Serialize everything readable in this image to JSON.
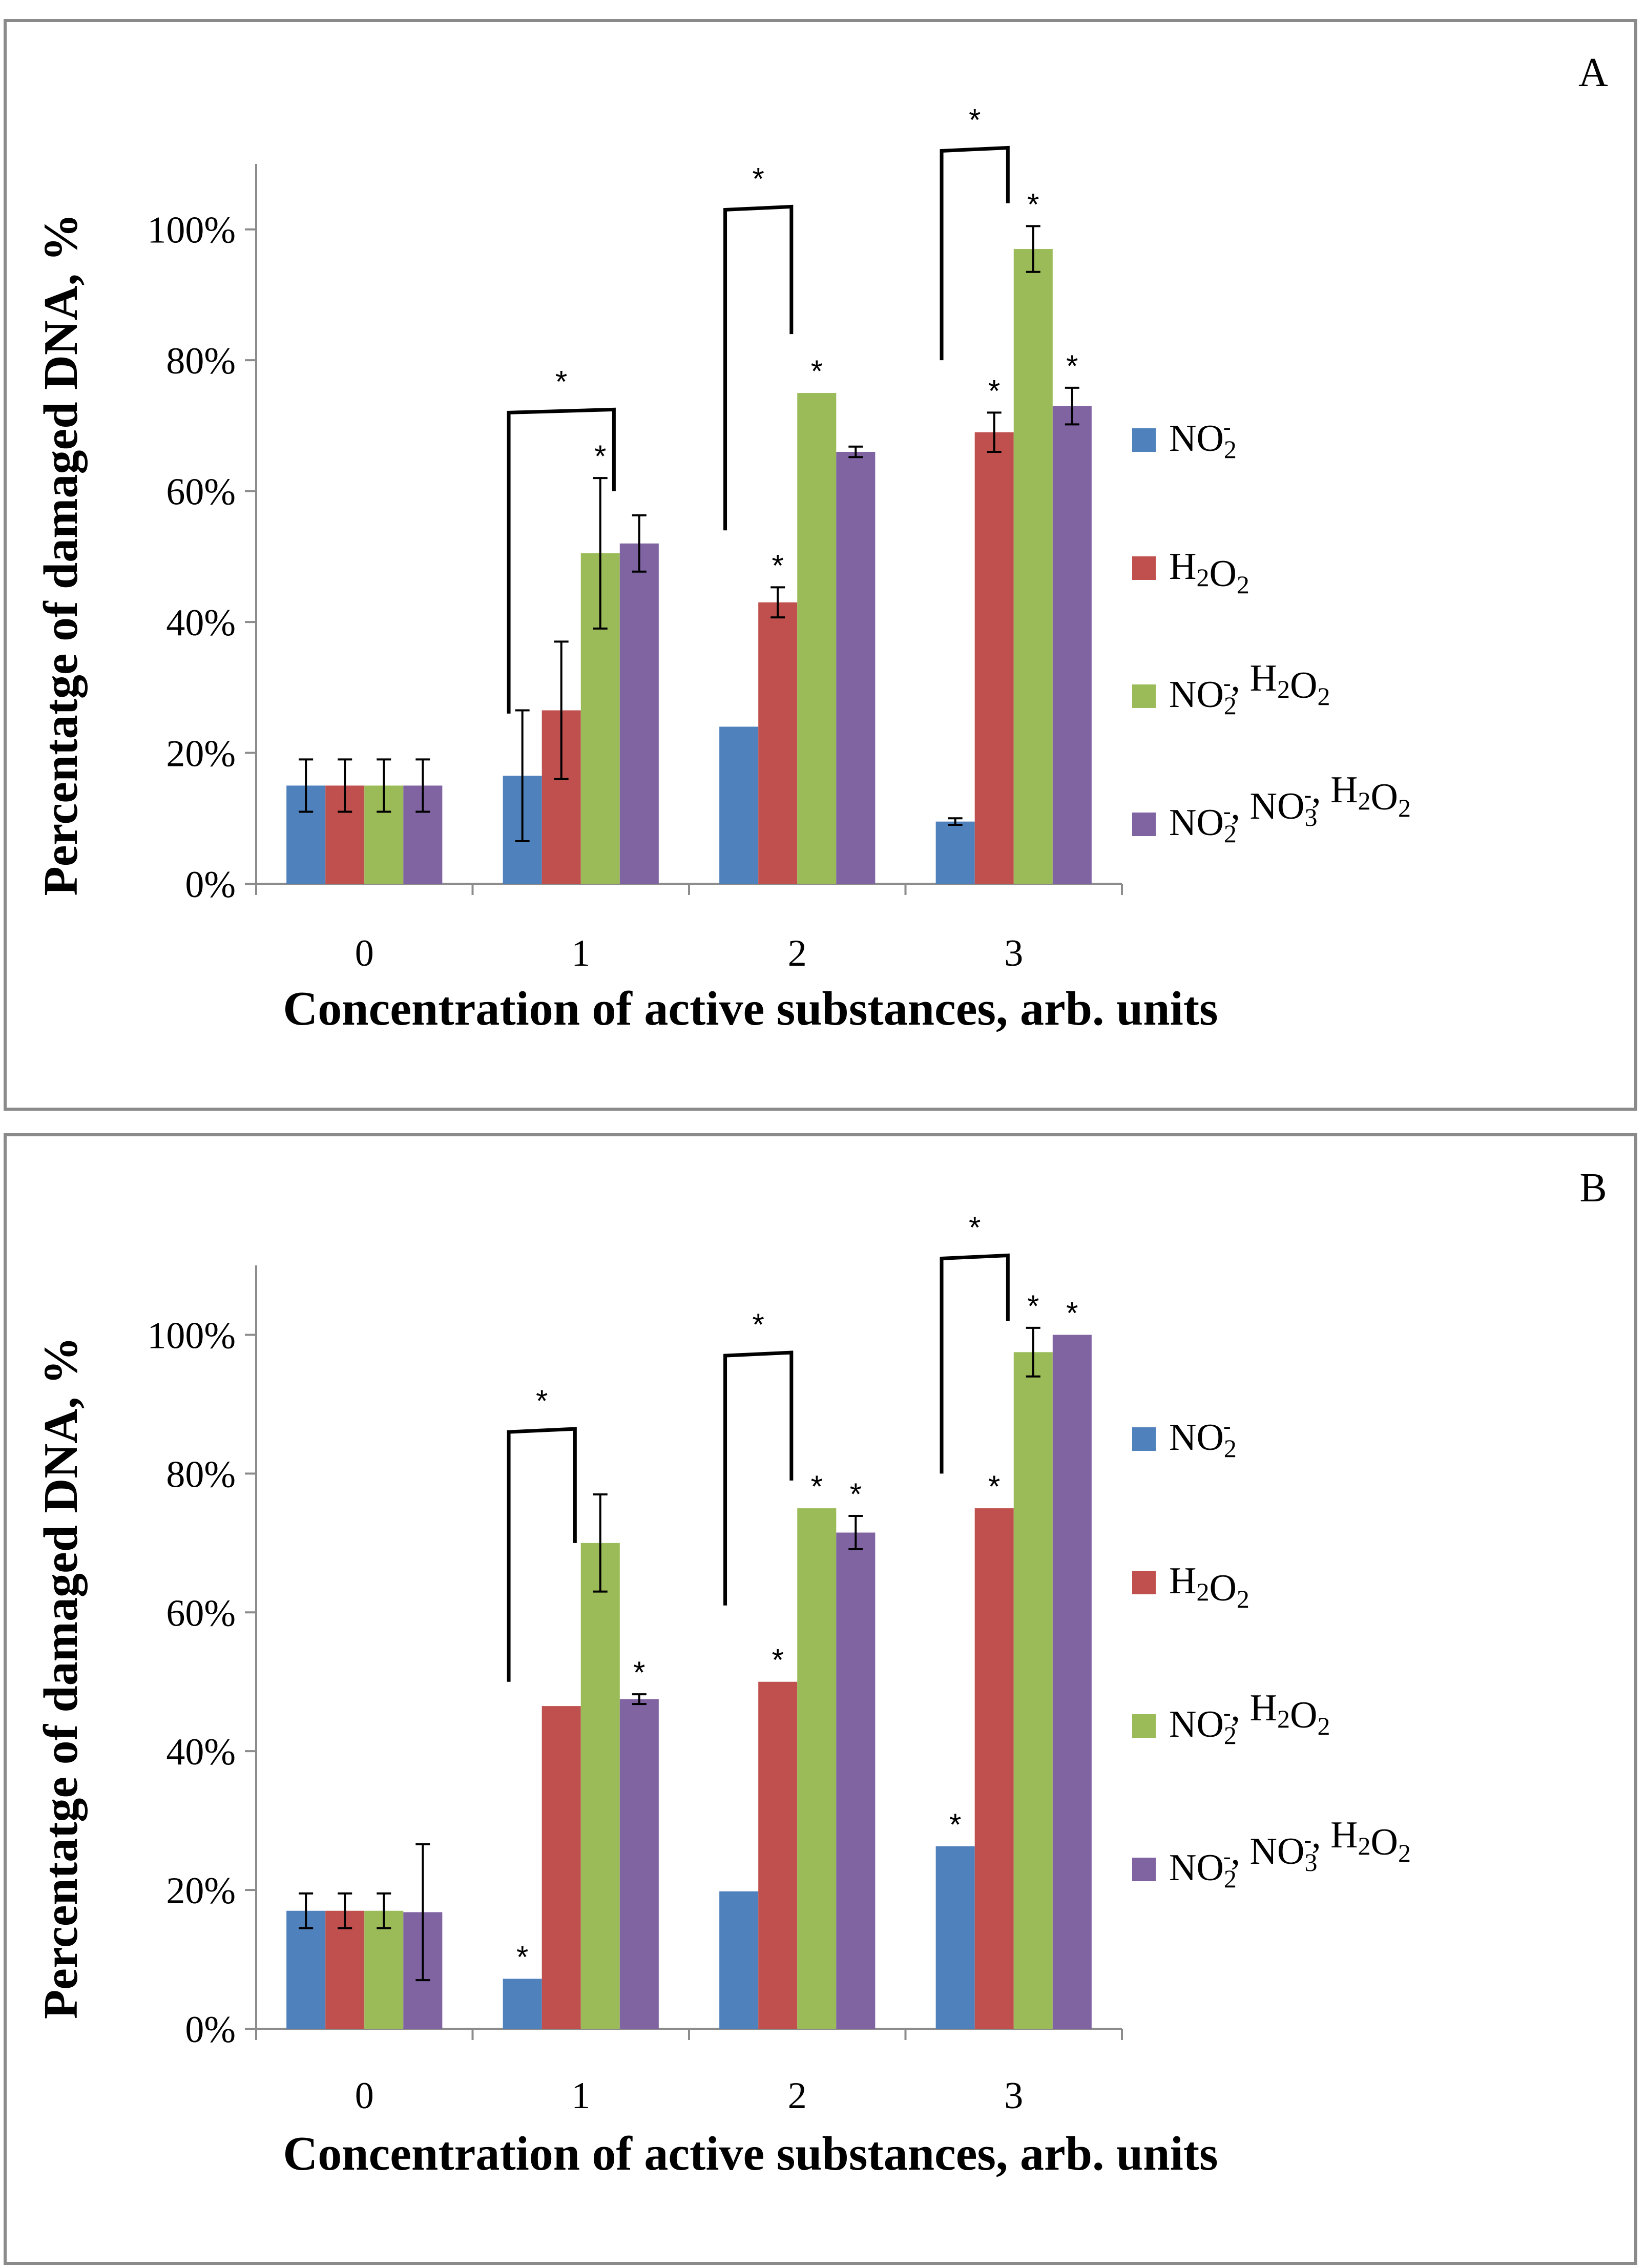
{
  "colors": {
    "series": [
      "#4f81bd",
      "#c0504d",
      "#9bbb59",
      "#8064a2"
    ]
  },
  "chart_data": [
    {
      "type": "bar",
      "panel_label": "A",
      "xlabel": "Concentration of active substances, arb. units",
      "ylabel": "Percentatge of damaged DNA, %",
      "categories": [
        "0",
        "1",
        "2",
        "3"
      ],
      "ylim": [
        0,
        110
      ],
      "yticks": [
        0,
        20,
        40,
        60,
        80,
        100
      ],
      "ytick_labels": [
        "0%",
        "20%",
        "40%",
        "60%",
        "80%",
        "100%"
      ],
      "legend_position": "right",
      "series": [
        {
          "name": "NO2-",
          "legend": {
            "base": "NO",
            "sub": "2",
            "sup": "-"
          },
          "values": [
            15,
            16.5,
            24,
            9.5
          ],
          "errors": [
            4,
            10,
            0,
            0.5
          ]
        },
        {
          "name": "H2O2",
          "legend": {
            "text": "H2O2"
          },
          "values": [
            15,
            26.5,
            43,
            69
          ],
          "errors": [
            4,
            10.5,
            2.3,
            3
          ]
        },
        {
          "name": "NO2-, H2O2",
          "legend": {
            "text": "NO2-, H2O2"
          },
          "values": [
            15,
            50.5,
            75,
            97
          ],
          "errors": [
            4,
            11.5,
            0,
            3.5
          ]
        },
        {
          "name": "NO2-, NO3-, H2O2",
          "legend": {
            "text": "NO2-, NO3-, H2O2"
          },
          "values": [
            15,
            52,
            66,
            73
          ],
          "errors": [
            4,
            4.3,
            0.8,
            2.8
          ]
        }
      ],
      "significance_markers": [
        {
          "category": 1,
          "series": 2
        },
        {
          "category": 2,
          "series": 1
        },
        {
          "category": 2,
          "series": 2
        },
        {
          "category": 3,
          "series": 1
        },
        {
          "category": 3,
          "series": 2
        },
        {
          "category": 3,
          "series": 3
        }
      ],
      "brackets": [
        {
          "category": 1,
          "from_series": 0,
          "to_series": 2,
          "left_value": 26,
          "right_value": 60,
          "top_value": 72
        },
        {
          "category": 2,
          "from_series": 0,
          "to_series": 1,
          "left_value": 54,
          "right_value": 84,
          "top_value": 103
        },
        {
          "category": 3,
          "from_series": 0,
          "to_series": 1,
          "left_value": 80,
          "right_value": 104,
          "top_value": 112
        }
      ],
      "star": "*"
    },
    {
      "type": "bar",
      "panel_label": "B",
      "xlabel": "Concentration of active substances, arb. units",
      "ylabel": "Percentatge of damaged DNA, %",
      "categories": [
        "0",
        "1",
        "2",
        "3"
      ],
      "ylim": [
        0,
        110
      ],
      "yticks": [
        0,
        20,
        40,
        60,
        80,
        100
      ],
      "ytick_labels": [
        "0%",
        "20%",
        "40%",
        "60%",
        "80%",
        "100%"
      ],
      "legend_position": "right",
      "series": [
        {
          "name": "NO2-",
          "legend": {
            "base": "NO",
            "sub": "2",
            "sup": "-"
          },
          "values": [
            17,
            7.2,
            19.8,
            26.3
          ],
          "errors": [
            2.5,
            0,
            0,
            0
          ]
        },
        {
          "name": "H2O2",
          "legend": {
            "text": "H2O2"
          },
          "values": [
            17,
            46.5,
            50,
            75
          ],
          "errors": [
            2.5,
            0,
            0,
            0
          ]
        },
        {
          "name": "NO2-, H2O2",
          "legend": {
            "text": "NO2-, H2O2"
          },
          "values": [
            17,
            70,
            75,
            97.5
          ],
          "errors": [
            2.5,
            7,
            0,
            3.5
          ]
        },
        {
          "name": "NO2-, NO3-, H2O2",
          "legend": {
            "text": "NO2-, NO3-, H2O2"
          },
          "values": [
            16.8,
            47.5,
            71.5,
            100
          ],
          "errors": [
            9.8,
            0.7,
            2.4,
            0
          ]
        }
      ],
      "significance_markers": [
        {
          "category": 1,
          "series": 0
        },
        {
          "category": 1,
          "series": 3
        },
        {
          "category": 2,
          "series": 1
        },
        {
          "category": 2,
          "series": 2
        },
        {
          "category": 2,
          "series": 3
        },
        {
          "category": 3,
          "series": 0
        },
        {
          "category": 3,
          "series": 1
        },
        {
          "category": 3,
          "series": 2
        },
        {
          "category": 3,
          "series": 3
        }
      ],
      "brackets": [
        {
          "category": 1,
          "from_series": 0,
          "to_series": 1,
          "left_value": 50,
          "right_value": 70,
          "top_value": 86
        },
        {
          "category": 2,
          "from_series": 0,
          "to_series": 1,
          "left_value": 61,
          "right_value": 79,
          "top_value": 97
        },
        {
          "category": 3,
          "from_series": 0,
          "to_series": 1,
          "left_value": 80,
          "right_value": 102,
          "top_value": 111
        }
      ],
      "star": "*"
    }
  ]
}
